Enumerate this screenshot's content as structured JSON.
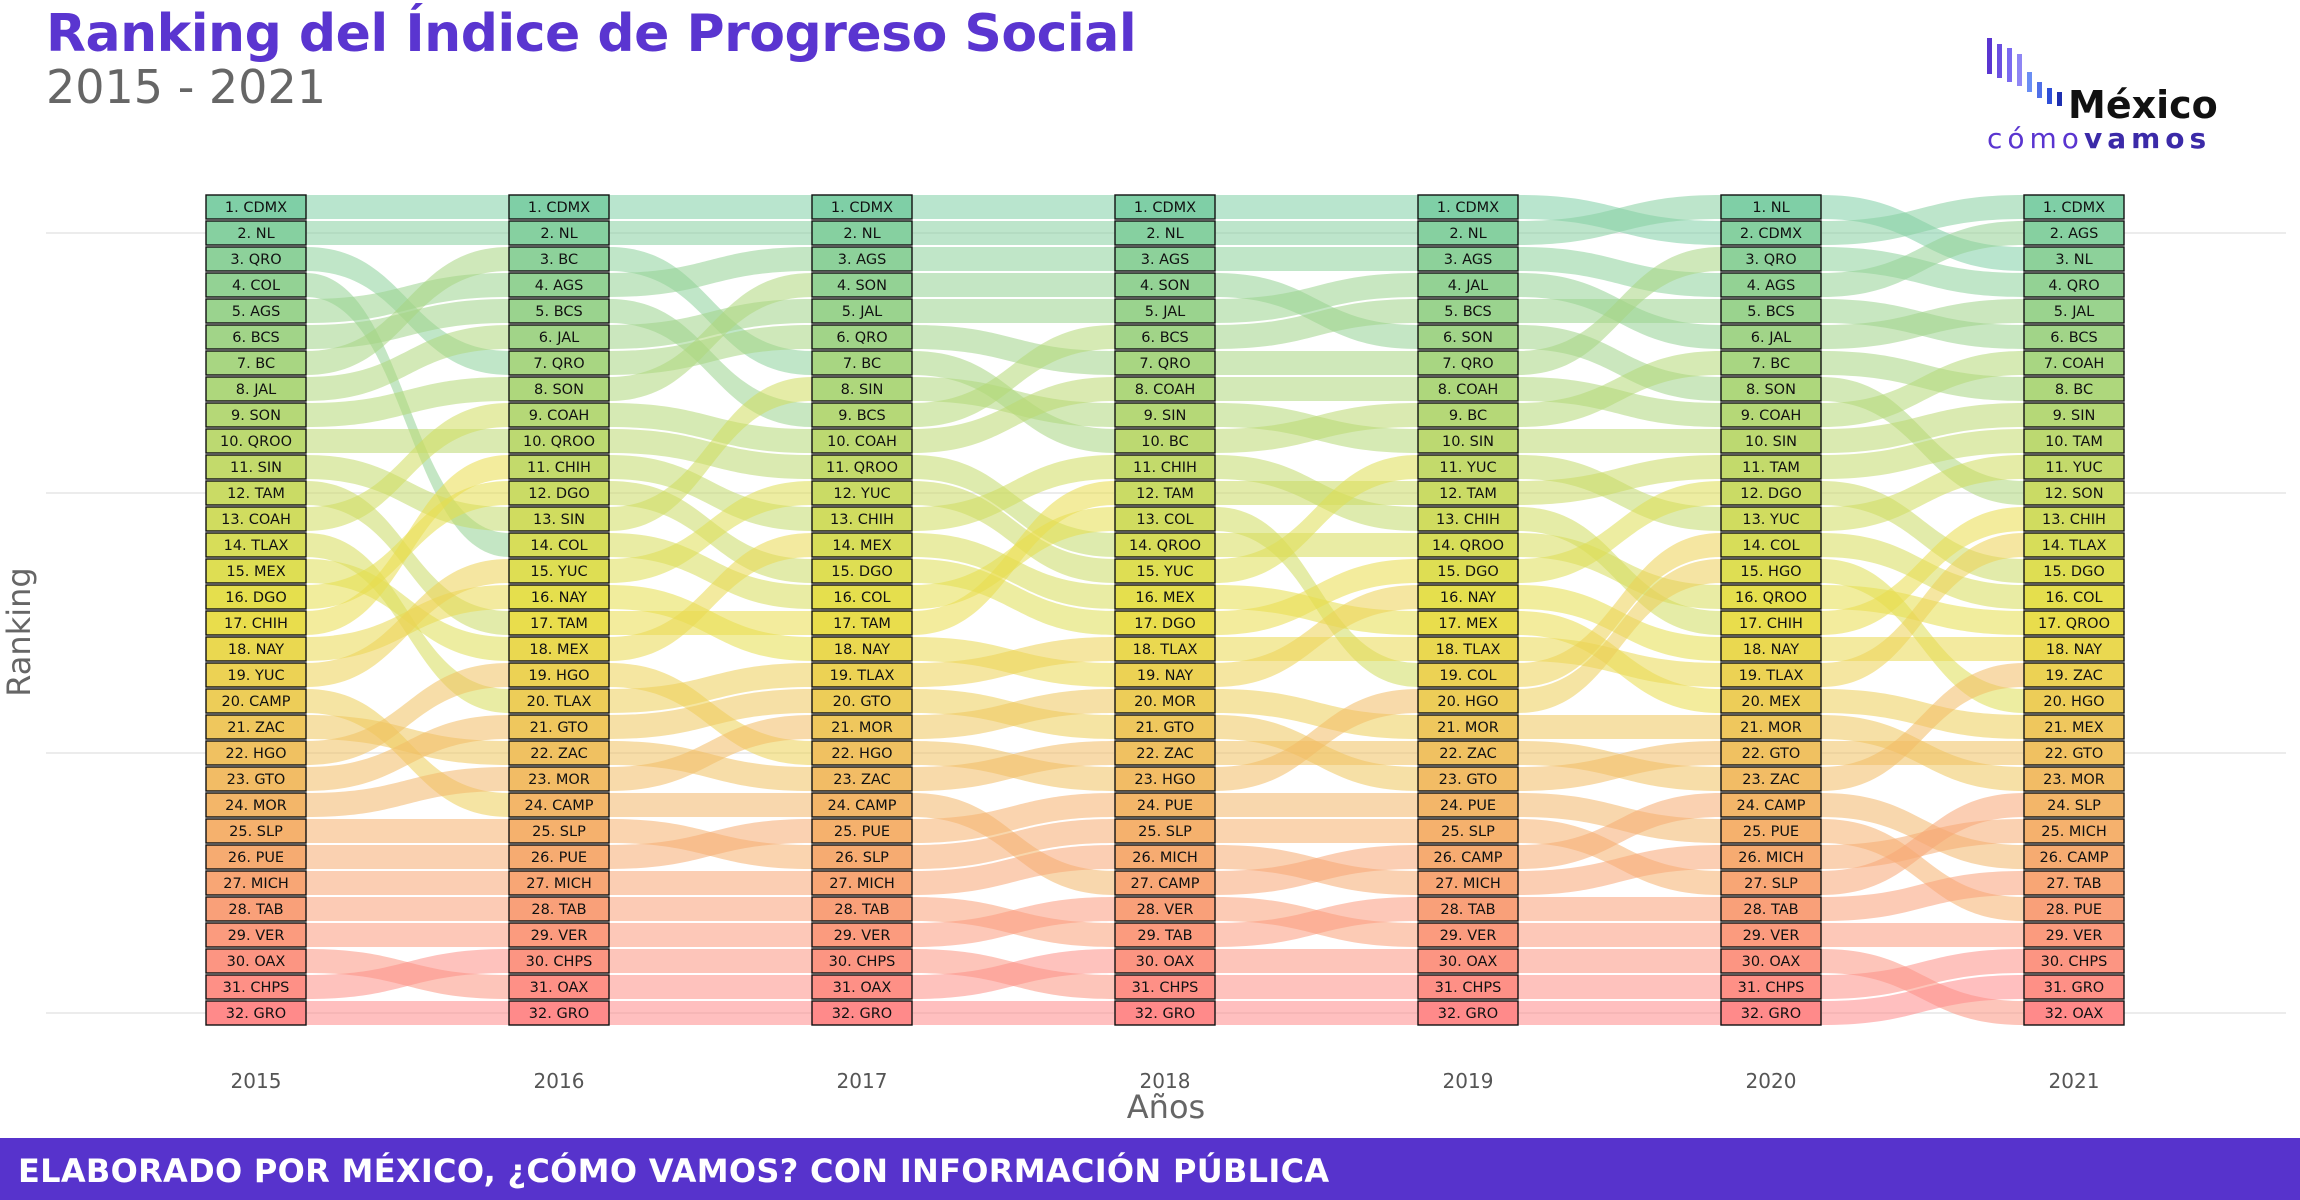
{
  "header": {
    "title": "Ranking del Índice de Progreso Social",
    "subtitle": "2015 - 2021"
  },
  "logo": {
    "line1": "México",
    "line2_light": "cómo",
    "line2_bold": "vamos"
  },
  "footer": {
    "text": "ELABORADO POR MÉXICO, ¿CÓMO VAMOS? CON INFORMACIÓN PÚBLICA"
  },
  "colors": {
    "brand": "#5a35d0",
    "footer_bg": "#5733cc",
    "rank_top": "#7fcfa6",
    "rank_mid": "#e8e04a",
    "rank_bottom": "#ff8a8a"
  },
  "chart_data": {
    "type": "bump",
    "title": "Ranking del Índice de Progreso Social",
    "xlabel": "Años",
    "ylabel": "Ranking",
    "years": [
      "2015",
      "2016",
      "2017",
      "2018",
      "2019",
      "2020",
      "2021"
    ],
    "rankings": {
      "2015": [
        "CDMX",
        "NL",
        "QRO",
        "COL",
        "AGS",
        "BCS",
        "BC",
        "JAL",
        "SON",
        "QROO",
        "SIN",
        "TAM",
        "COAH",
        "TLAX",
        "MEX",
        "DGO",
        "CHIH",
        "NAY",
        "YUC",
        "CAMP",
        "ZAC",
        "HGO",
        "GTO",
        "MOR",
        "SLP",
        "PUE",
        "MICH",
        "TAB",
        "VER",
        "OAX",
        "CHPS",
        "GRO"
      ],
      "2016": [
        "CDMX",
        "NL",
        "BC",
        "AGS",
        "BCS",
        "JAL",
        "QRO",
        "SON",
        "COAH",
        "QROO",
        "CHIH",
        "DGO",
        "SIN",
        "COL",
        "YUC",
        "NAY",
        "TAM",
        "MEX",
        "HGO",
        "TLAX",
        "GTO",
        "ZAC",
        "MOR",
        "CAMP",
        "SLP",
        "PUE",
        "MICH",
        "TAB",
        "VER",
        "CHPS",
        "OAX",
        "GRO"
      ],
      "2017": [
        "CDMX",
        "NL",
        "AGS",
        "SON",
        "JAL",
        "QRO",
        "BC",
        "SIN",
        "BCS",
        "COAH",
        "QROO",
        "YUC",
        "CHIH",
        "MEX",
        "DGO",
        "COL",
        "TAM",
        "NAY",
        "TLAX",
        "GTO",
        "MOR",
        "HGO",
        "ZAC",
        "CAMP",
        "PUE",
        "SLP",
        "MICH",
        "TAB",
        "VER",
        "CHPS",
        "OAX",
        "GRO"
      ],
      "2018": [
        "CDMX",
        "NL",
        "AGS",
        "SON",
        "JAL",
        "BCS",
        "QRO",
        "COAH",
        "SIN",
        "BC",
        "CHIH",
        "TAM",
        "COL",
        "QROO",
        "YUC",
        "MEX",
        "DGO",
        "TLAX",
        "NAY",
        "MOR",
        "GTO",
        "ZAC",
        "HGO",
        "PUE",
        "SLP",
        "MICH",
        "CAMP",
        "VER",
        "TAB",
        "OAX",
        "CHPS",
        "GRO"
      ],
      "2019": [
        "CDMX",
        "NL",
        "AGS",
        "JAL",
        "BCS",
        "SON",
        "QRO",
        "COAH",
        "BC",
        "SIN",
        "YUC",
        "TAM",
        "CHIH",
        "QROO",
        "DGO",
        "NAY",
        "MEX",
        "TLAX",
        "COL",
        "HGO",
        "MOR",
        "ZAC",
        "GTO",
        "PUE",
        "SLP",
        "CAMP",
        "MICH",
        "TAB",
        "VER",
        "OAX",
        "CHPS",
        "GRO"
      ],
      "2020": [
        "NL",
        "CDMX",
        "QRO",
        "AGS",
        "BCS",
        "JAL",
        "BC",
        "SON",
        "COAH",
        "SIN",
        "TAM",
        "DGO",
        "YUC",
        "COL",
        "HGO",
        "QROO",
        "CHIH",
        "NAY",
        "TLAX",
        "MEX",
        "MOR",
        "GTO",
        "ZAC",
        "CAMP",
        "PUE",
        "MICH",
        "SLP",
        "TAB",
        "VER",
        "OAX",
        "CHPS",
        "GRO"
      ],
      "2021": [
        "CDMX",
        "AGS",
        "NL",
        "QRO",
        "JAL",
        "BCS",
        "COAH",
        "BC",
        "SIN",
        "TAM",
        "YUC",
        "SON",
        "CHIH",
        "TLAX",
        "DGO",
        "COL",
        "QROO",
        "NAY",
        "ZAC",
        "HGO",
        "MEX",
        "GTO",
        "MOR",
        "SLP",
        "MICH",
        "CAMP",
        "TAB",
        "PUE",
        "VER",
        "CHPS",
        "GRO",
        "OAX"
      ]
    },
    "grid": true
  }
}
